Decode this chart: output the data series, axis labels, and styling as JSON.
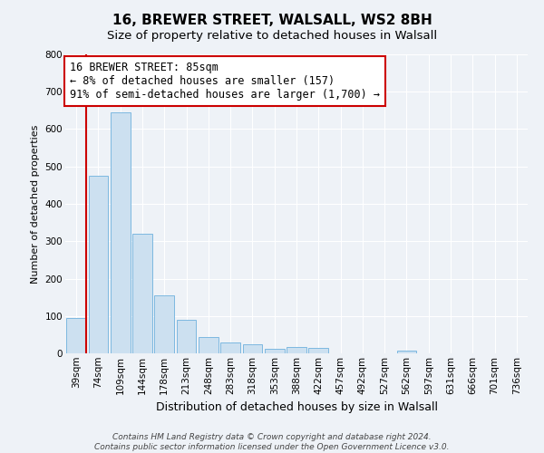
{
  "title": "16, BREWER STREET, WALSALL, WS2 8BH",
  "subtitle": "Size of property relative to detached houses in Walsall",
  "xlabel": "Distribution of detached houses by size in Walsall",
  "ylabel": "Number of detached properties",
  "bar_labels": [
    "39sqm",
    "74sqm",
    "109sqm",
    "144sqm",
    "178sqm",
    "213sqm",
    "248sqm",
    "283sqm",
    "318sqm",
    "353sqm",
    "388sqm",
    "422sqm",
    "457sqm",
    "492sqm",
    "527sqm",
    "562sqm",
    "597sqm",
    "631sqm",
    "666sqm",
    "701sqm",
    "736sqm"
  ],
  "bar_values": [
    95,
    475,
    645,
    320,
    155,
    90,
    43,
    28,
    25,
    13,
    17,
    14,
    0,
    0,
    0,
    8,
    0,
    0,
    0,
    0,
    0
  ],
  "bar_color_light": "#cce0f0",
  "bar_color_dark": "#5b9bd5",
  "bar_edge_color": "#7db8e0",
  "vline_color": "#cc0000",
  "annotation_text": "16 BREWER STREET: 85sqm\n← 8% of detached houses are smaller (157)\n91% of semi-detached houses are larger (1,700) →",
  "annotation_box_facecolor": "#ffffff",
  "annotation_box_edgecolor": "#cc0000",
  "ylim": [
    0,
    800
  ],
  "yticks": [
    0,
    100,
    200,
    300,
    400,
    500,
    600,
    700,
    800
  ],
  "bg_color": "#eef2f7",
  "grid_color": "#ffffff",
  "footer_text": "Contains HM Land Registry data © Crown copyright and database right 2024.\nContains public sector information licensed under the Open Government Licence v3.0.",
  "title_fontsize": 11,
  "subtitle_fontsize": 9.5,
  "xlabel_fontsize": 9,
  "ylabel_fontsize": 8,
  "tick_fontsize": 7.5,
  "annotation_fontsize": 8.5,
  "footer_fontsize": 6.5
}
